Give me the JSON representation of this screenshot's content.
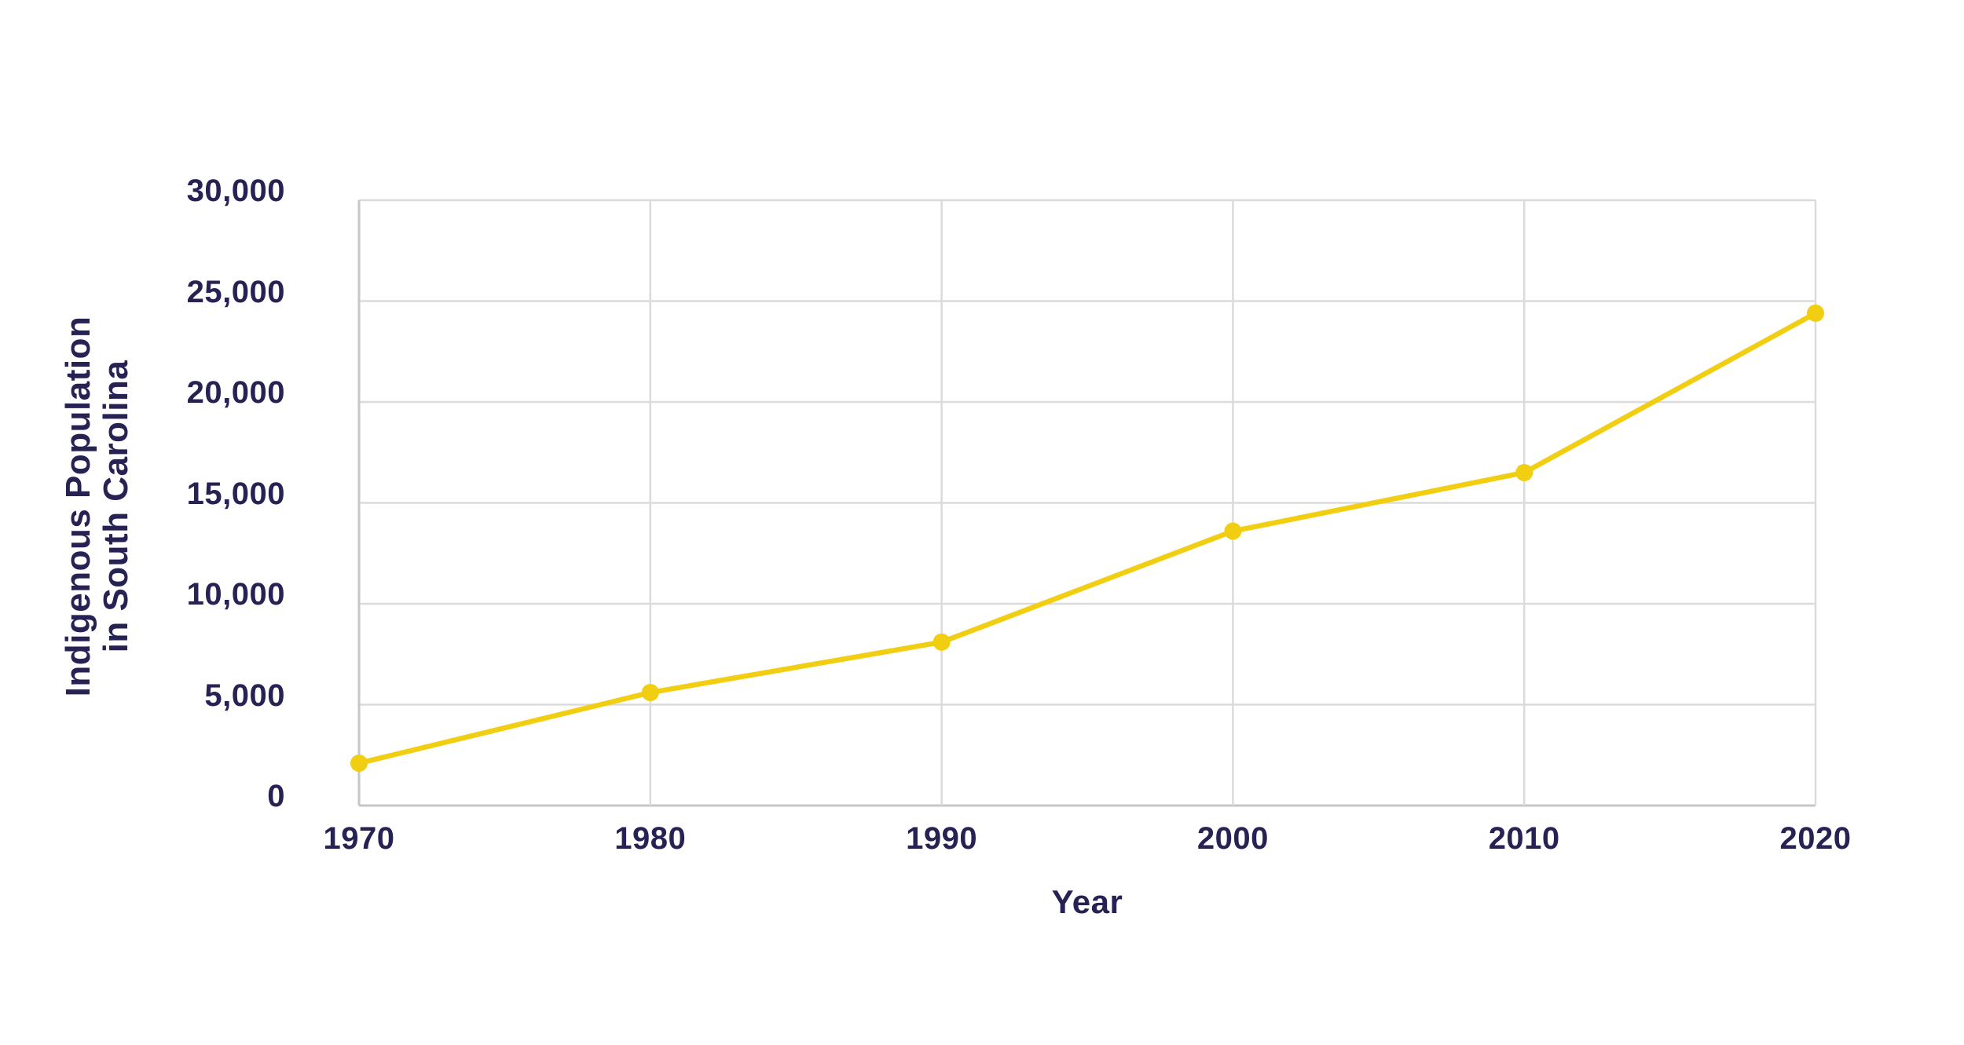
{
  "chart_data": {
    "type": "line",
    "x": [
      1970,
      1980,
      1990,
      2000,
      2010,
      2020
    ],
    "xtick_labels": [
      "1970",
      "1980",
      "1990",
      "2000",
      "2010",
      "2020"
    ],
    "series": [
      {
        "name": "Indigenous Population in South Carolina",
        "values": [
          2100,
          5600,
          8100,
          13600,
          16500,
          24400
        ]
      }
    ],
    "title": "",
    "xlabel": "Year",
    "ylabel": "Indigenous Population in South Carolina",
    "ylabel_lines": [
      "Indigenous Population",
      "in South Carolina"
    ],
    "ylim": [
      0,
      30000
    ],
    "ytick_step": 5000,
    "ytick_labels": [
      "0",
      "5,000",
      "10,000",
      "15,000",
      "20,000",
      "25,000",
      "30,000"
    ],
    "grid": true,
    "legend": "none",
    "colors": {
      "line": "#F1CE12",
      "marker": "#F1CE12",
      "grid": "#DBDBDB",
      "axis_border": "#C6C6C6",
      "text": "#262253",
      "background": "#FFFFFF"
    }
  }
}
